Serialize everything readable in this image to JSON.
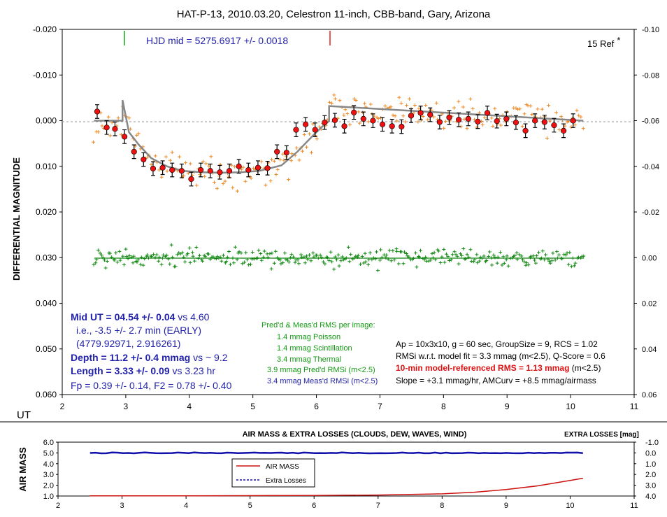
{
  "chart_data": [
    {
      "type": "scatter",
      "title": "HAT-P-13, 2010.03.20, Celestron 11-inch, CBB-band, Gary, Arizona",
      "xlabel": "UT",
      "ylabel": "DIFFERENTIAL MAGNITUDE",
      "xlim": [
        2,
        11
      ],
      "ylim": [
        -0.02,
        0.06
      ],
      "y_inverted": true,
      "x_ticks": [
        "2",
        "3",
        "4",
        "5",
        "6",
        "7",
        "8",
        "9",
        "10",
        "11"
      ],
      "y_ticks": [
        "-0.020",
        "-0.010",
        "0.000",
        "0.010",
        "0.020",
        "0.030",
        "0.040",
        "0.050",
        "0.060"
      ],
      "y2_ticks": [
        "-0.10",
        "-0.08",
        "-0.06",
        "-0.04",
        "-0.02",
        "0.00",
        "0.02",
        "0.04",
        "0.06"
      ],
      "ingress_ut": 2.95,
      "egress_ut": 6.2,
      "hjd_label": "HJD mid = 5275.6917 +/- 0.0018",
      "ref_label": "15 Ref",
      "ref_mark": "*",
      "colors": {
        "title": "#000000",
        "binned": "#ee1111",
        "raw": "#ee8822",
        "model": "#888888",
        "residuals": "#118811",
        "ingress_marker": "#11aa11",
        "egress_marker": "#dd2222",
        "hjd_text": "#2222aa"
      },
      "binned": {
        "x": [
          2.55,
          2.7,
          2.83,
          2.98,
          3.13,
          3.28,
          3.43,
          3.58,
          3.73,
          3.88,
          4.03,
          4.18,
          4.33,
          4.48,
          4.63,
          4.78,
          4.93,
          5.08,
          5.23,
          5.38,
          5.53,
          5.68,
          5.83,
          5.98,
          6.13,
          6.29,
          6.44,
          6.59,
          6.74,
          6.89,
          7.04,
          7.19,
          7.34,
          7.49,
          7.64,
          7.79,
          7.94,
          8.09,
          8.24,
          8.39,
          8.54,
          8.69,
          8.84,
          8.99,
          9.14,
          9.29,
          9.44,
          9.59,
          9.74,
          9.89,
          10.04
        ],
        "y": [
          -0.002,
          0.0015,
          0.0018,
          0.0035,
          0.0068,
          0.0085,
          0.0105,
          0.0103,
          0.0108,
          0.011,
          0.0128,
          0.0108,
          0.011,
          0.0113,
          0.011,
          0.01,
          0.0108,
          0.0103,
          0.0104,
          0.0068,
          0.007,
          0.002,
          0.0008,
          0.002,
          0.0004,
          -0.0001,
          0.0012,
          -0.0018,
          -0.0004,
          0.0,
          0.0008,
          0.0012,
          0.0013,
          -0.0011,
          -0.0017,
          -0.0013,
          0.0003,
          -0.0007,
          -0.0002,
          -0.0004,
          0.0002,
          -0.0017,
          0.0001,
          -0.0004,
          0.0004,
          0.0022,
          0.0,
          0.0003,
          0.001,
          0.0022,
          0.0
        ],
        "err": 0.0015
      },
      "model_curve": {
        "x": [
          2.5,
          2.95,
          2.95,
          3.05,
          3.2,
          3.4,
          3.65,
          3.9,
          4.2,
          4.5,
          4.8,
          5.1,
          5.45,
          5.7,
          5.95,
          6.1,
          6.2,
          6.2,
          10.2
        ],
        "y": [
          0.0,
          0.0,
          -0.0045,
          0.0025,
          0.0052,
          0.0082,
          0.01,
          0.011,
          0.0113,
          0.0114,
          0.0113,
          0.011,
          0.0098,
          0.0068,
          0.0032,
          0.0012,
          0.0001,
          -0.0032,
          0.0
        ]
      },
      "raw": {
        "seed": 13,
        "count": 240,
        "x_range": [
          2.5,
          10.2
        ],
        "scatter": 0.003
      },
      "residuals": {
        "offset_y": 0.03,
        "count": 330,
        "x_range": [
          2.5,
          10.2
        ],
        "scatter": 0.0016
      },
      "annotations": {
        "mid_ut": "Mid UT = 04.54 +/- 0.04",
        "mid_ut_vs": " vs 4.60",
        "early": "i.e., -3.5 +/- 2.7 min (EARLY)",
        "coords": "(4779.92971, 2.916261)",
        "depth": "Depth = 11.2 +/- 0.4 mmag",
        "depth_vs": " vs  ~ 9.2",
        "length": "Length = 3.33 +/- 0.09",
        "length_vs": " vs 3.23 hr",
        "fp": "Fp = 0.39 +/- 0.14, F2 = 0.78 +/- 0.40",
        "rms_header": "Pred'd & Meas'd RMS per image:",
        "rms_lines": [
          "1.4 mmag Poisson",
          "1.4 mmag Scintillation",
          "3.4 mmag Thermal",
          "3.9 mmag Pred'd  RMSi (m<2.5)",
          "3.4 mmag Meas'd RMSi (m<2.5)"
        ],
        "ap": "Ap = 10x3x10, g = 60 sec, GroupSize = 9, RCS = 1.02",
        "rmsi": "RMSi w.r.t. model fit = 3.3 mmag (m<2.5), Q-Score = 0.6",
        "ten_min": "10-min model-referenced RMS = 1.13 mmag",
        "ten_min_suffix": " (m<2.5)",
        "slope": "Slope = +3.1 mmag/hr, AMCurv = +8.5 mmag/airmass"
      }
    },
    {
      "type": "line",
      "title": "AIR MASS & EXTRA LOSSES (CLOUDS, DEW, WAVES, WIND)",
      "ylabel": "AIR MASS",
      "y2label": "EXTRA LOSSES [mag]",
      "xlim": [
        2,
        11
      ],
      "ylim": [
        1.0,
        6.0
      ],
      "x_ticks": [
        "2",
        "3",
        "4",
        "5",
        "6",
        "7",
        "8",
        "9",
        "10",
        "11"
      ],
      "y_ticks": [
        "6.0",
        "5.0",
        "4.0",
        "3.0",
        "2.0",
        "1.0"
      ],
      "y2_ticks": [
        "-1.0",
        "0.0",
        "1.0",
        "2.0",
        "3.0",
        "4.0"
      ],
      "series": [
        {
          "name": "AIR MASS",
          "color": "#cc1111",
          "x": [
            2.5,
            3.0,
            4.0,
            5.0,
            6.0,
            7.0,
            8.0,
            8.5,
            9.0,
            9.5,
            10.0,
            10.2
          ],
          "y": [
            1.02,
            1.02,
            1.02,
            1.03,
            1.05,
            1.09,
            1.2,
            1.35,
            1.6,
            1.95,
            2.45,
            2.65
          ]
        },
        {
          "name": "Extra Losses",
          "color": "#1111aa",
          "x": [
            2.5,
            10.2
          ],
          "y": [
            0.0,
            0.0
          ]
        }
      ]
    }
  ]
}
